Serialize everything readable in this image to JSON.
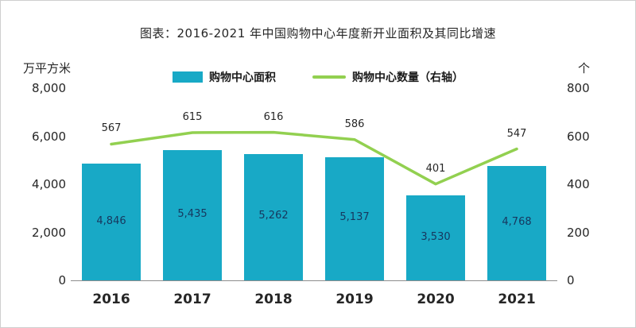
{
  "title": "图表：2016-2021 年中国购物中心年度新开业面积及其同比增速",
  "left_axis": {
    "unit": "万平方米",
    "ticks": [
      {
        "value": 0,
        "label": "0"
      },
      {
        "value": 2000,
        "label": "2,000"
      },
      {
        "value": 4000,
        "label": "4,000"
      },
      {
        "value": 6000,
        "label": "6,000"
      },
      {
        "value": 8000,
        "label": "8,000"
      }
    ]
  },
  "right_axis": {
    "unit": "个",
    "ticks": [
      {
        "value": 0,
        "label": "0"
      },
      {
        "value": 200,
        "label": "200"
      },
      {
        "value": 400,
        "label": "400"
      },
      {
        "value": 600,
        "label": "600"
      },
      {
        "value": 800,
        "label": "800"
      }
    ]
  },
  "legend": [
    {
      "label": "购物中心面积",
      "type": "bar",
      "color": "#18a9c6"
    },
    {
      "label": "购物中心数量（右轴）",
      "type": "line",
      "color": "#92d050"
    }
  ],
  "colors": {
    "bar": "#18a9c6",
    "line": "#92d050",
    "bar_label": "#17375e",
    "axis_text": "#262626"
  },
  "chart_data": {
    "type": "bar+line",
    "title": "图表：2016-2021 年中国购物中心年度新开业面积及其同比增速",
    "categories": [
      "2016",
      "2017",
      "2018",
      "2019",
      "2020",
      "2021"
    ],
    "series": [
      {
        "name": "购物中心面积",
        "type": "bar",
        "axis": "left",
        "values": [
          4846,
          5435,
          5262,
          5137,
          3530,
          4768
        ],
        "labels": [
          "4,846",
          "5,435",
          "5,262",
          "5,137",
          "3,530",
          "4,768"
        ],
        "color": "#18a9c6"
      },
      {
        "name": "购物中心数量（右轴）",
        "type": "line",
        "axis": "right",
        "values": [
          567,
          615,
          616,
          586,
          401,
          547
        ],
        "labels": [
          "567",
          "615",
          "616",
          "586",
          "401",
          "547"
        ],
        "color": "#92d050"
      }
    ],
    "left_ylabel": "万平方米",
    "right_ylabel": "个",
    "left_ylim": [
      0,
      8000
    ],
    "right_ylim": [
      0,
      800
    ],
    "grid": false,
    "legend_position": "top"
  }
}
